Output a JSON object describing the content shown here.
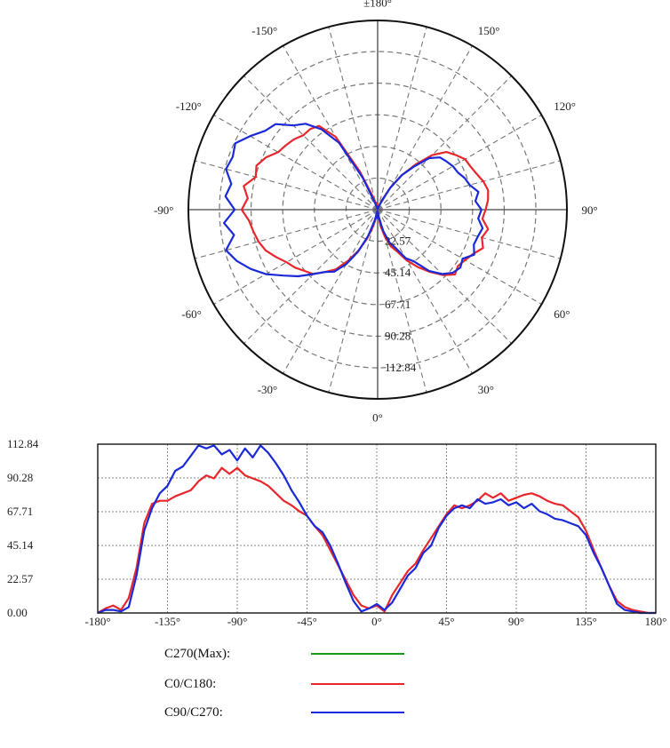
{
  "chart_data": [
    {
      "type": "polar",
      "angle_labels": [
        {
          "angle": 180,
          "text": "±180°"
        },
        {
          "angle": 150,
          "text": "150°"
        },
        {
          "angle": 120,
          "text": "120°"
        },
        {
          "angle": 90,
          "text": "90°"
        },
        {
          "angle": 60,
          "text": "60°"
        },
        {
          "angle": 30,
          "text": "30°"
        },
        {
          "angle": 0,
          "text": "0°"
        },
        {
          "angle": -30,
          "text": "-30°"
        },
        {
          "angle": -60,
          "text": "-60°"
        },
        {
          "angle": -90,
          "text": "-90°"
        },
        {
          "angle": -120,
          "text": "-120°"
        },
        {
          "angle": -150,
          "text": "-150°"
        }
      ],
      "radial_ticks": [
        22.57,
        45.14,
        67.71,
        90.28,
        112.84
      ],
      "radial_tick_labels": [
        "22.57",
        "45.14",
        "67.71",
        "90.28",
        "112.84"
      ],
      "rmax": 135,
      "grid": true
    },
    {
      "type": "line",
      "x_ticks": [
        -180,
        -135,
        -90,
        -45,
        0,
        45,
        90,
        135,
        180
      ],
      "x_tick_labels": [
        "-180°",
        "-135°",
        "-90°",
        "-45°",
        "0°",
        "45°",
        "90°",
        "135°",
        "180°"
      ],
      "y_ticks": [
        0,
        22.57,
        45.14,
        67.71,
        90.28,
        112.84
      ],
      "y_tick_labels": [
        "0.00",
        "22.57",
        "45.14",
        "67.71",
        "90.28",
        "112.84"
      ],
      "xlim": [
        -180,
        180
      ],
      "ylim": [
        0,
        112.84
      ],
      "grid": true,
      "series": [
        {
          "name": "C270(Max):",
          "color": "#1a9a1a",
          "angles": [],
          "values": []
        },
        {
          "name": "C0/C180:",
          "color": "#e8262b",
          "angles": [
            -180,
            -175,
            -170,
            -165,
            -160,
            -155,
            -150,
            -145,
            -140,
            -135,
            -130,
            -125,
            -120,
            -115,
            -110,
            -105,
            -100,
            -95,
            -90,
            -85,
            -80,
            -75,
            -70,
            -65,
            -60,
            -55,
            -50,
            -45,
            -40,
            -35,
            -30,
            -25,
            -20,
            -15,
            -10,
            -5,
            0,
            5,
            10,
            15,
            20,
            25,
            30,
            35,
            40,
            45,
            50,
            55,
            60,
            65,
            70,
            75,
            80,
            85,
            90,
            95,
            100,
            105,
            110,
            115,
            120,
            125,
            130,
            135,
            140,
            145,
            150,
            155,
            160,
            165,
            170,
            175,
            180
          ],
          "values": [
            0,
            3,
            5,
            2,
            10,
            30,
            60,
            73,
            75,
            75,
            78,
            80,
            82,
            88,
            92,
            90,
            97,
            93,
            97,
            92,
            90,
            88,
            85,
            80,
            75,
            72,
            68,
            65,
            58,
            52,
            42,
            32,
            22,
            12,
            5,
            3,
            5,
            1,
            12,
            20,
            28,
            33,
            42,
            50,
            58,
            66,
            72,
            70,
            72,
            75,
            80,
            77,
            80,
            75,
            77,
            79,
            80,
            78,
            75,
            73,
            72,
            68,
            64,
            55,
            42,
            30,
            18,
            8,
            4,
            2,
            1,
            0,
            0
          ]
        },
        {
          "name": "C90/C270:",
          "color": "#1a2ad8",
          "angles": [
            -180,
            -175,
            -170,
            -165,
            -160,
            -155,
            -150,
            -145,
            -140,
            -135,
            -130,
            -125,
            -120,
            -115,
            -110,
            -105,
            -100,
            -95,
            -90,
            -85,
            -80,
            -75,
            -70,
            -65,
            -60,
            -55,
            -50,
            -45,
            -40,
            -35,
            -30,
            -25,
            -20,
            -15,
            -10,
            -5,
            0,
            5,
            10,
            15,
            20,
            25,
            30,
            35,
            40,
            45,
            50,
            55,
            60,
            65,
            70,
            75,
            80,
            85,
            90,
            95,
            100,
            105,
            110,
            115,
            120,
            125,
            130,
            135,
            140,
            145,
            150,
            155,
            160,
            165,
            170,
            175,
            180
          ],
          "values": [
            0,
            2,
            2,
            1,
            4,
            25,
            55,
            70,
            80,
            85,
            95,
            98,
            105,
            112,
            110,
            112,
            106,
            109,
            102,
            110,
            104,
            112,
            107,
            100,
            92,
            82,
            74,
            65,
            58,
            54,
            45,
            33,
            20,
            8,
            1,
            3,
            6,
            2,
            7,
            16,
            25,
            30,
            40,
            45,
            57,
            65,
            70,
            72,
            70,
            76,
            73,
            74,
            76,
            72,
            74,
            70,
            73,
            68,
            66,
            63,
            62,
            60,
            58,
            52,
            40,
            30,
            18,
            6,
            2,
            1,
            0,
            0,
            0
          ]
        }
      ]
    }
  ],
  "legend": {
    "entries": [
      {
        "label": "C270(Max):",
        "color": "#1a9a1a"
      },
      {
        "label": "C0/C180:",
        "color": "#e8262b"
      },
      {
        "label": "C90/C270:",
        "color": "#1a2ad8"
      }
    ]
  }
}
